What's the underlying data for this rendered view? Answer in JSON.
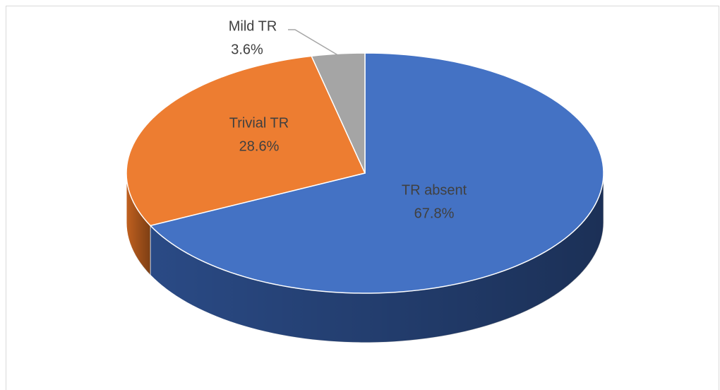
{
  "chart_data": {
    "type": "pie",
    "categories": [
      "TR absent",
      "Trivial TR",
      "Mild TR"
    ],
    "values": [
      67.8,
      28.6,
      3.6
    ],
    "value_labels": [
      "67.8%",
      "28.6%",
      "3.6%"
    ],
    "colors": [
      "#4472c4",
      "#ed7d31",
      "#a5a5a5"
    ],
    "side_colors": [
      "#2a4a85",
      "#c0601f",
      "#7f7f7f"
    ],
    "three_d": true
  }
}
